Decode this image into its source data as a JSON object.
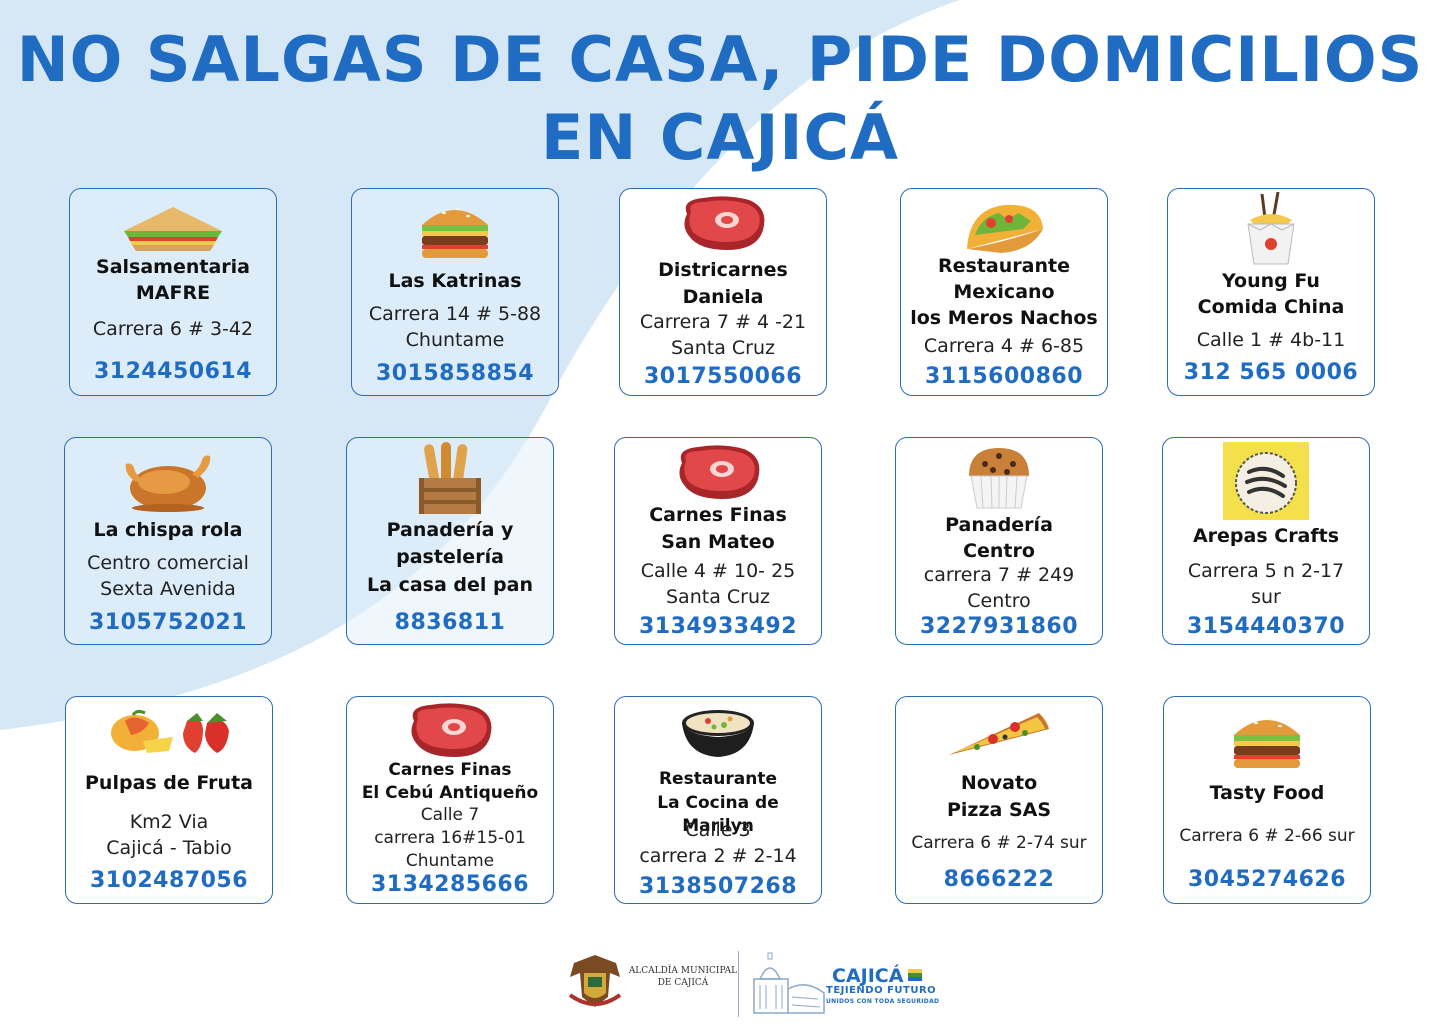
{
  "title": {
    "line1": "NO SALGAS DE CASA, PIDE DOMICILIOS",
    "line2": "EN CAJICÁ"
  },
  "colors": {
    "primary_blue": "#1f6cc2",
    "swoosh_blue": "#d6e8f6",
    "border": "#2a6db5"
  },
  "cards": [
    {
      "icon": "sandwich-icon",
      "name_lines": [
        "Salsamentaria",
        "MAFRE"
      ],
      "address_lines": [
        "Carrera 6 # 3-42"
      ],
      "phone": "3124450614"
    },
    {
      "icon": "burger-icon",
      "name_lines": [
        "Las Katrinas"
      ],
      "address_lines": [
        "Carrera 14 # 5-88",
        "Chuntame"
      ],
      "phone": "3015858854"
    },
    {
      "icon": "steak-icon",
      "name_lines": [
        "Districarnes",
        "Daniela"
      ],
      "address_lines": [
        "Carrera 7 # 4 -21",
        "Santa Cruz"
      ],
      "phone": "3017550066"
    },
    {
      "icon": "taco-icon",
      "name_lines": [
        "Restaurante",
        "Mexicano",
        "los Meros Nachos"
      ],
      "address_lines": [
        "Carrera 4 # 6-85"
      ],
      "phone": "3115600860"
    },
    {
      "icon": "noodle-box-icon",
      "name_lines": [
        "Young Fu",
        "Comida China"
      ],
      "address_lines": [
        "Calle 1 # 4b-11"
      ],
      "phone": "312 565 0006"
    },
    {
      "icon": "roast-chicken-icon",
      "name_lines": [
        "La chispa rola"
      ],
      "address_lines": [
        "Centro comercial",
        "Sexta Avenida"
      ],
      "phone": "3105752021"
    },
    {
      "icon": "bread-crate-icon",
      "name_lines": [
        "Panadería y",
        "pastelería",
        "La casa del pan"
      ],
      "address_lines": [],
      "phone": "8836811"
    },
    {
      "icon": "steak-icon",
      "name_lines": [
        "Carnes Finas",
        "San Mateo"
      ],
      "address_lines": [
        "Calle 4 # 10- 25",
        "Santa Cruz"
      ],
      "phone": "3134933492"
    },
    {
      "icon": "muffin-icon",
      "name_lines": [
        "Panadería",
        "Centro"
      ],
      "address_lines": [
        "carrera 7 # 249",
        "Centro"
      ],
      "phone": "3227931860"
    },
    {
      "icon": "arepa-logo-icon",
      "name_lines": [
        "Arepas Crafts"
      ],
      "address_lines": [
        "Carrera 5 n 2-17",
        "sur"
      ],
      "phone": "3154440370"
    },
    {
      "icon": "fruit-icon",
      "name_lines": [
        "Pulpas de Fruta"
      ],
      "address_lines": [
        "Km2 Via",
        "Cajicá - Tabio"
      ],
      "phone": "3102487056"
    },
    {
      "icon": "steak-icon",
      "name_lines": [
        "Carnes Finas",
        "El Cebú Antiqueño"
      ],
      "address_lines": [
        "Calle 7",
        "carrera 16#15-01",
        "Chuntame"
      ],
      "phone": "3134285666"
    },
    {
      "icon": "soup-bowl-icon",
      "name_lines": [
        "Restaurante",
        "La Cocina de Marilyn"
      ],
      "address_lines": [
        "Calle 3",
        "carrera 2 # 2-14"
      ],
      "phone": "3138507268"
    },
    {
      "icon": "pizza-icon",
      "name_lines": [
        "Novato",
        "Pizza SAS"
      ],
      "address_lines": [
        "Carrera 6 # 2-74 sur"
      ],
      "phone": "8666222"
    },
    {
      "icon": "burger-icon",
      "name_lines": [
        "Tasty Food"
      ],
      "address_lines": [
        "Carrera 6 # 2-66 sur"
      ],
      "phone": "3045274626"
    }
  ],
  "footer": {
    "alcaldia_lines": [
      "ALCALDÍA MUNICIPAL",
      "DE CAJICÁ"
    ],
    "brand": "CAJICÁ",
    "slogan": "TEJIENDO FUTURO",
    "tagline": "UNIDOS CON TODA SEGURIDAD"
  }
}
